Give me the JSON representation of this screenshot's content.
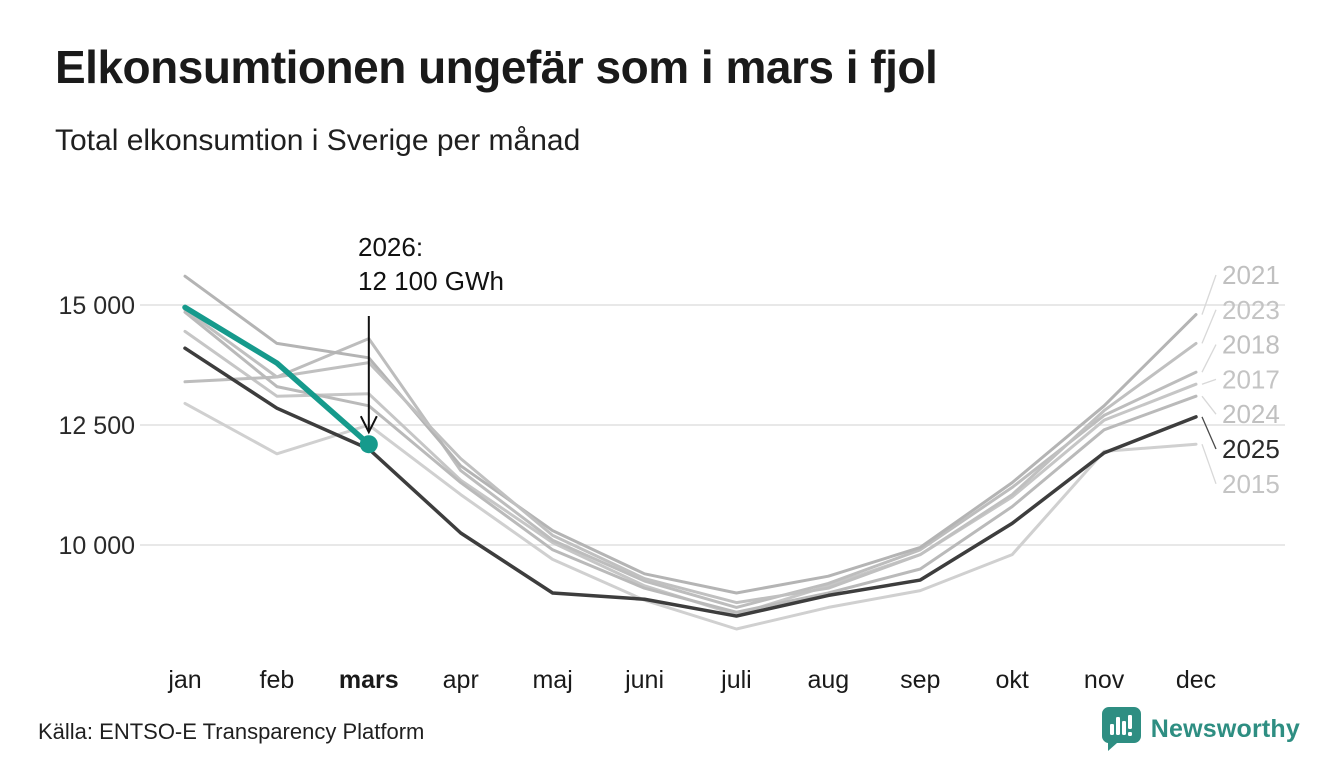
{
  "header": {
    "title": "Elkonsumtionen ungefär som i mars i fjol",
    "subtitle": "Total elkonsumtion i Sverige per månad"
  },
  "annotation": {
    "line1": "2026:",
    "line2": "12 100 GWh",
    "month": "mars",
    "value": 12100
  },
  "source": {
    "label": "Källa: ENTSO-E Transparency Platform"
  },
  "logo": {
    "text": "Newsworthy",
    "icon": "newsworthy-speech-bubble-chart-icon",
    "color": "#2e8e82"
  },
  "colors": {
    "accent_teal": "#169a8c",
    "grid": "#e8e8e8",
    "arrow": "#111111",
    "axis_text": "#2a2a2a"
  },
  "chart_data": {
    "type": "line",
    "title": "Total elkonsumtion i Sverige per månad",
    "unit": "GWh",
    "categories": [
      "jan",
      "feb",
      "mars",
      "apr",
      "maj",
      "juni",
      "juli",
      "aug",
      "sep",
      "okt",
      "nov",
      "dec"
    ],
    "highlighted_month": "mars",
    "xlabel": "",
    "ylabel": "GWh",
    "y_ticks": [
      15000,
      12500,
      10000
    ],
    "y_tick_labels": [
      "15 000",
      "12 500",
      "10 000"
    ],
    "ylim": [
      7900,
      16200
    ],
    "grid": "horizontal-only",
    "legend_position": "right-end-labels",
    "series": [
      {
        "name": "2015",
        "color": "#d0d0d0",
        "width": 3,
        "label_color": "#c4c4c4",
        "leader_color": "#d8d8d8",
        "values": [
          12950,
          11900,
          12500,
          11050,
          9700,
          8850,
          8250,
          8700,
          9050,
          9800,
          11950,
          12100
        ]
      },
      {
        "name": "2017",
        "color": "#c6c6c6",
        "width": 3,
        "label_color": "#c4c4c4",
        "leader_color": "#d8d8d8",
        "values": [
          14450,
          13100,
          13150,
          11350,
          10050,
          9150,
          8550,
          9150,
          9800,
          11000,
          12600,
          13350
        ]
      },
      {
        "name": "2018",
        "color": "#bdbdbd",
        "width": 3,
        "label_color": "#c0c0c0",
        "leader_color": "#d8d8d8",
        "values": [
          13400,
          13500,
          14300,
          11550,
          10100,
          9250,
          8700,
          9200,
          9900,
          11200,
          12700,
          13600
        ]
      },
      {
        "name": "2021",
        "color": "#b4b4b4",
        "width": 3,
        "label_color": "#c0c0c0",
        "leader_color": "#d8d8d8",
        "values": [
          15600,
          14200,
          13900,
          11650,
          10300,
          9400,
          9000,
          9350,
          9950,
          11300,
          12900,
          14800
        ]
      },
      {
        "name": "2023",
        "color": "#c0c0c0",
        "width": 3,
        "label_color": "#c4c4c4",
        "leader_color": "#d8d8d8",
        "values": [
          14900,
          13500,
          13800,
          11800,
          10200,
          9300,
          8800,
          9100,
          9800,
          11050,
          12800,
          14200
        ]
      },
      {
        "name": "2024",
        "color": "#bababa",
        "width": 3,
        "label_color": "#c0c0c0",
        "leader_color": "#d8d8d8",
        "values": [
          14850,
          13300,
          12900,
          11300,
          9900,
          9100,
          8600,
          9000,
          9500,
          10800,
          12400,
          13100
        ]
      },
      {
        "name": "2025",
        "color": "#3d3d3d",
        "width": 3.5,
        "label_color": "#2b2b2b",
        "leader_color": "#4a4a4a",
        "values": [
          14100,
          12850,
          12000,
          10250,
          9000,
          8870,
          8520,
          8950,
          9270,
          10450,
          11920,
          12670
        ]
      },
      {
        "name": "2026",
        "color": "#169a8c",
        "width": 5.5,
        "label_color": "#169a8c",
        "leader_color": "#169a8c",
        "endpoint_dot": true,
        "annotated": true,
        "values": [
          14950,
          13790,
          12100
        ]
      }
    ]
  }
}
